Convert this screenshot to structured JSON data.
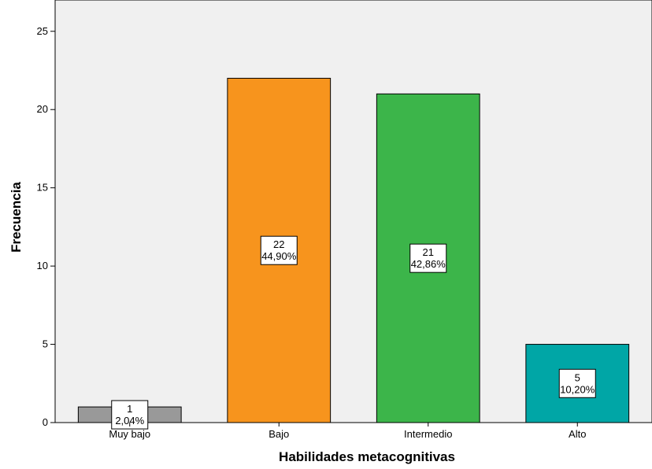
{
  "chart_data": {
    "type": "bar",
    "title": "",
    "xlabel": "Habilidades metacognitivas",
    "ylabel": "Frecuencia",
    "ylim": [
      0,
      27
    ],
    "yticks": [
      0,
      5,
      10,
      15,
      20,
      25
    ],
    "categories": [
      "Muy bajo",
      "Bajo",
      "Intermedio",
      "Alto"
    ],
    "values": [
      1,
      22,
      21,
      5
    ],
    "percent_labels": [
      "2,04%",
      "44,90%",
      "42,86%",
      "10,20%"
    ],
    "colors": [
      "#999999",
      "#f7941d",
      "#3cb54a",
      "#00a6a6"
    ],
    "grid": false,
    "background": "#f0f0f0"
  }
}
